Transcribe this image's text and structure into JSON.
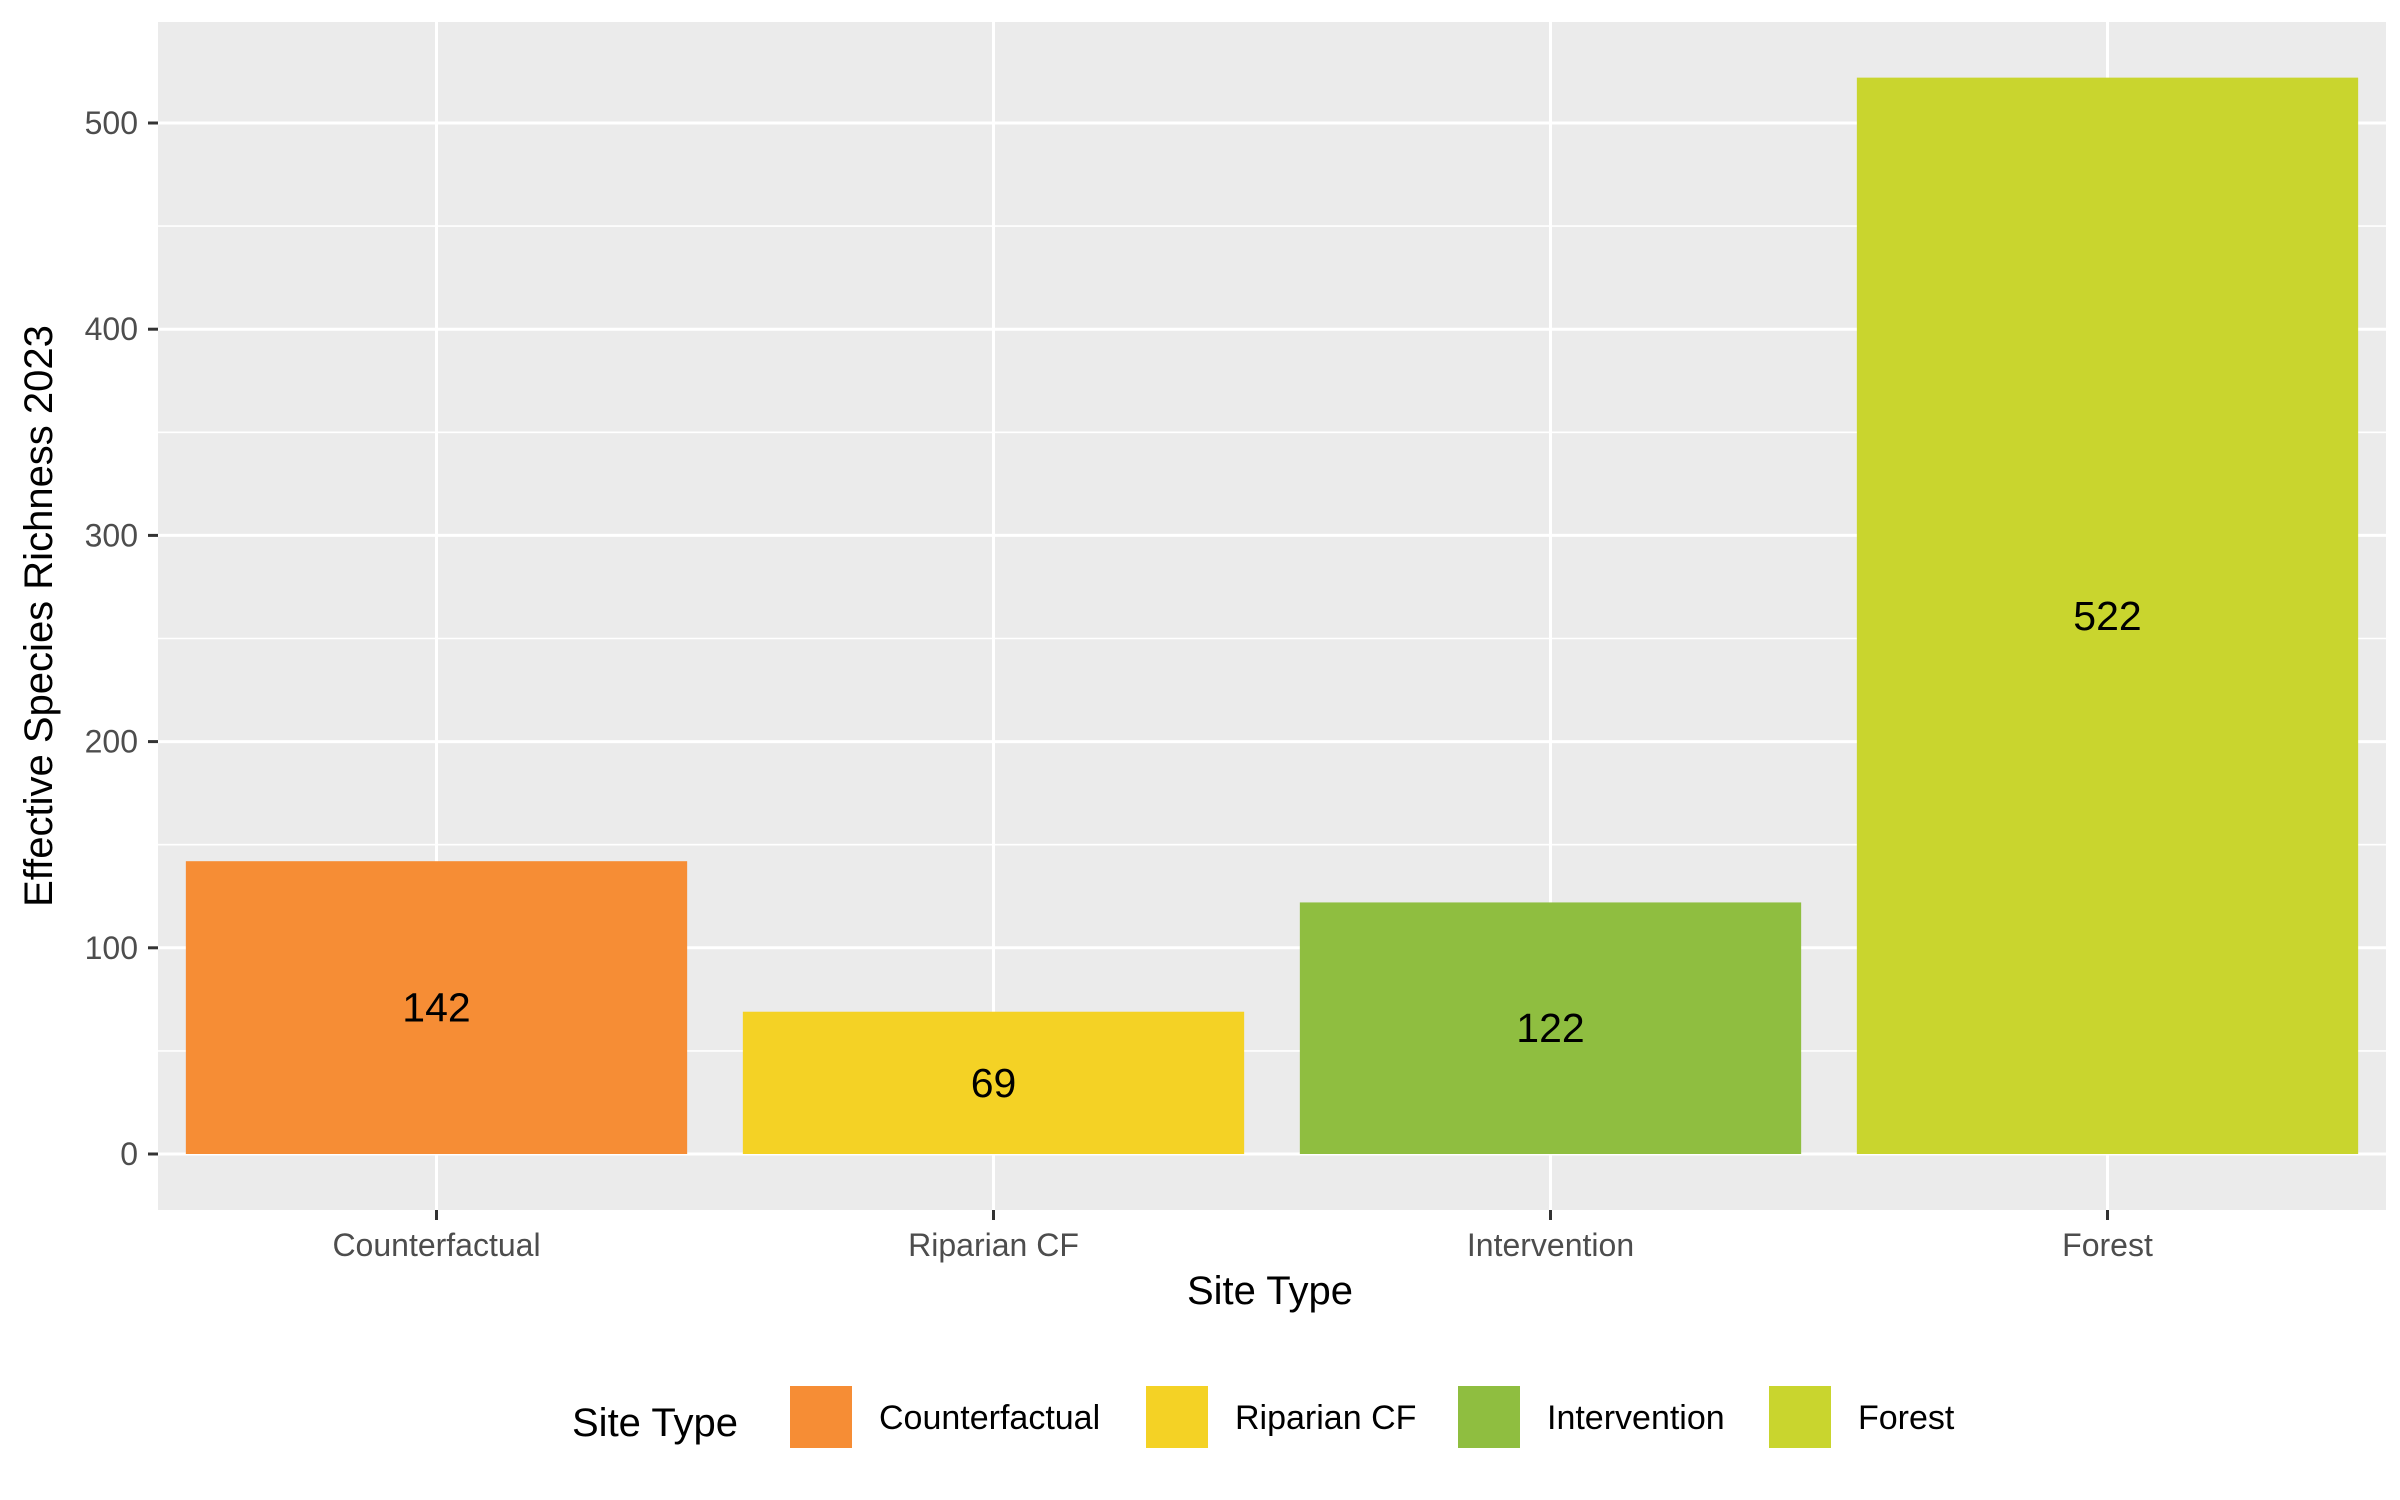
{
  "chart_data": {
    "type": "bar",
    "categories": [
      "Counterfactual",
      "Riparian CF",
      "Intervention",
      "Forest"
    ],
    "values": [
      142,
      69,
      122,
      522
    ],
    "data_labels": [
      "142",
      "69",
      "122",
      "522"
    ],
    "colors": [
      "#F68D35",
      "#F4D225",
      "#8FBE40",
      "#C9D52E"
    ],
    "xlabel": "Site Type",
    "ylabel": "Effective Species Richness 2023",
    "ylim": [
      -25,
      560
    ],
    "yticks": [
      0,
      100,
      200,
      300,
      400,
      500
    ],
    "grid": true,
    "legend": {
      "title": "Site Type",
      "position": "bottom",
      "entries": [
        "Counterfactual",
        "Riparian CF",
        "Intervention",
        "Forest"
      ]
    },
    "panel_background": "#EBEBEB"
  }
}
